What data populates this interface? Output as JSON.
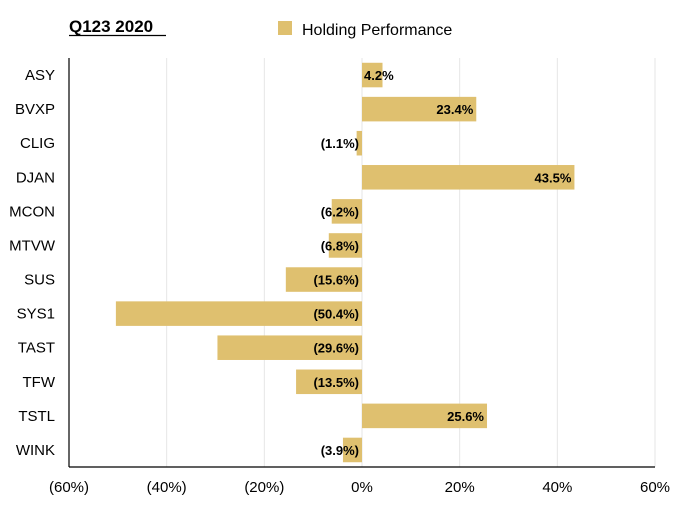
{
  "chart_data": {
    "type": "bar",
    "orientation": "horizontal",
    "title": "Q123 2020",
    "legend": {
      "label": "Holding Performance",
      "placement": "top"
    },
    "categories": [
      "ASY",
      "BVXP",
      "CLIG",
      "DJAN",
      "MCON",
      "MTVW",
      "SUS",
      "SYS1",
      "TAST",
      "TFW",
      "TSTL",
      "WINK"
    ],
    "values": [
      4.2,
      23.4,
      -1.1,
      43.5,
      -6.2,
      -6.8,
      -15.6,
      -50.4,
      -29.6,
      -13.5,
      25.6,
      -3.9
    ],
    "data_labels": [
      "4.2%",
      "23.4%",
      "(1.1%)",
      "43.5%",
      "(6.2%)",
      "(6.8%)",
      "(15.6%)",
      "(50.4%)",
      "(29.6%)",
      "(13.5%)",
      "25.6%",
      "(3.9%)"
    ],
    "xlim": [
      -60,
      60
    ],
    "x_ticks": [
      -60,
      -40,
      -20,
      0,
      20,
      40,
      60
    ],
    "x_tick_labels": [
      "(60%)",
      "(40%)",
      "(20%)",
      "0%",
      "20%",
      "40%",
      "60%"
    ],
    "xlabel": "",
    "ylabel": "",
    "grid": "vertical",
    "colors": {
      "bar": "#dfc06f",
      "grid": "#e6e6e6",
      "axis": "#000000"
    }
  }
}
